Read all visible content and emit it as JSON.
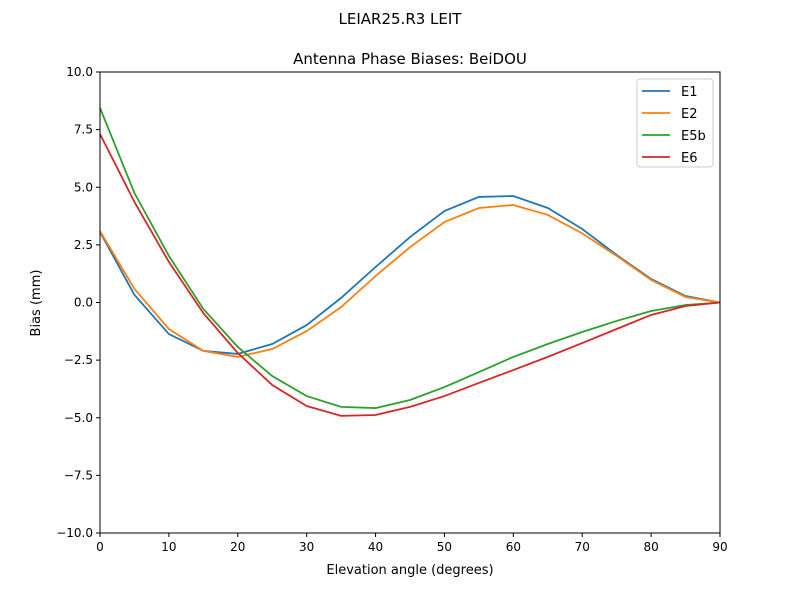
{
  "suptitle": "LEIAR25.R3      LEIT",
  "chart_data": {
    "type": "line",
    "title": "Antenna Phase Biases: BeiDOU",
    "xlabel": "Elevation angle (degrees)",
    "ylabel": "Bias (mm)",
    "xlim": [
      0,
      90
    ],
    "ylim": [
      -10,
      10
    ],
    "xticks": [
      "0",
      "10",
      "20",
      "30",
      "40",
      "50",
      "60",
      "70",
      "80",
      "90"
    ],
    "yticks": [
      "10.0",
      "7.5",
      "5.0",
      "2.5",
      "0.0",
      "−2.5",
      "−5.0",
      "−7.5",
      "−10.0"
    ],
    "grid": false,
    "legend_position": "top-right",
    "x": [
      0,
      5,
      10,
      15,
      20,
      25,
      30,
      35,
      40,
      45,
      50,
      55,
      60,
      65,
      70,
      75,
      80,
      85,
      90
    ],
    "series": [
      {
        "name": "E1",
        "color": "#1f77b4",
        "values": [
          3.06,
          0.33,
          -1.37,
          -2.1,
          -2.23,
          -1.8,
          -0.98,
          0.2,
          1.54,
          2.84,
          3.97,
          4.58,
          4.62,
          4.1,
          3.19,
          2.06,
          1.02,
          0.28,
          0
        ]
      },
      {
        "name": "E2",
        "color": "#ff7f0e",
        "values": [
          3.1,
          0.59,
          -1.15,
          -2.1,
          -2.36,
          -2.02,
          -1.24,
          -0.2,
          1.15,
          2.4,
          3.49,
          4.1,
          4.23,
          3.8,
          3.0,
          2.02,
          0.98,
          0.24,
          0
        ]
      },
      {
        "name": "E5b",
        "color": "#2ca02c",
        "values": [
          8.44,
          4.75,
          2.02,
          -0.28,
          -1.93,
          -3.19,
          -4.06,
          -4.53,
          -4.58,
          -4.23,
          -3.67,
          -3.02,
          -2.36,
          -1.8,
          -1.28,
          -0.8,
          -0.37,
          -0.11,
          0
        ]
      },
      {
        "name": "E6",
        "color": "#d62728",
        "values": [
          7.31,
          4.36,
          1.76,
          -0.46,
          -2.19,
          -3.58,
          -4.49,
          -4.92,
          -4.88,
          -4.53,
          -4.06,
          -3.49,
          -2.93,
          -2.36,
          -1.76,
          -1.15,
          -0.54,
          -0.15,
          0
        ]
      }
    ]
  }
}
